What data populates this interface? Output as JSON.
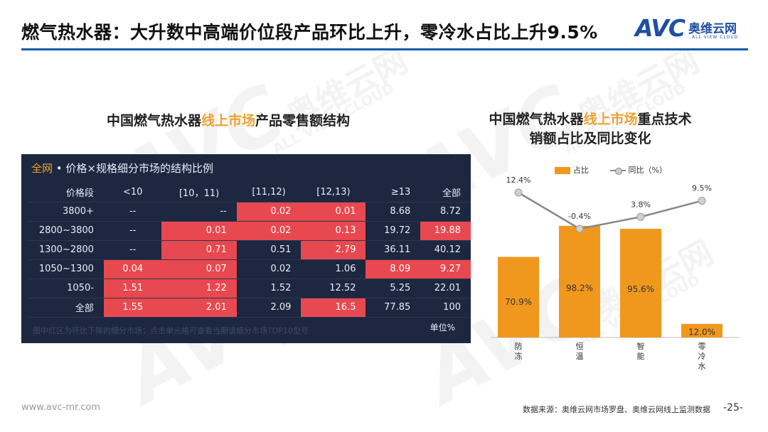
{
  "header": {
    "title": "燃气热水器：大升数中高端价位段产品环比上升，零冷水占比上升9.5%",
    "logo_text": "AVC",
    "logo_cn": "奥维云网",
    "logo_en": "ALL VIEW CLOUD",
    "accent_color": "#1a5aa8"
  },
  "watermark": {
    "mark": "AVC",
    "cn": "奥维云网",
    "en": "ALL VIEW CLOUD"
  },
  "left": {
    "subtitle_pre": "中国燃气热水器",
    "subtitle_hl": "线上市场",
    "subtitle_post": "产品零售额结构",
    "panel_scope": "全网",
    "panel_title": " • 价格×规格细分市场的结构比例",
    "note": "图中红区为环比下降的细分市场；点击单元格可查看当期该细分市场TOP10型号",
    "unit": "单位%",
    "columns": [
      "价格段",
      "<10",
      "[10，11)",
      "[11,12)",
      "[12,13)",
      "≥13",
      "全部"
    ],
    "rows": [
      {
        "cells": [
          "3800+",
          "--",
          "--",
          "0.02",
          "0.01",
          "8.68",
          "8.72"
        ],
        "red": [
          false,
          false,
          false,
          true,
          true,
          false,
          false
        ]
      },
      {
        "cells": [
          "2800~3800",
          "--",
          "0.01",
          "0.02",
          "0.13",
          "19.72",
          "19.88"
        ],
        "red": [
          false,
          false,
          true,
          true,
          true,
          false,
          true
        ]
      },
      {
        "cells": [
          "1300~2800",
          "--",
          "0.71",
          "0.51",
          "2.79",
          "36.11",
          "40.12"
        ],
        "red": [
          false,
          false,
          true,
          false,
          true,
          false,
          false
        ]
      },
      {
        "cells": [
          "1050~1300",
          "0.04",
          "0.07",
          "0.02",
          "1.06",
          "8.09",
          "9.27"
        ],
        "red": [
          false,
          true,
          true,
          false,
          false,
          true,
          true
        ]
      },
      {
        "cells": [
          "1050-",
          "1.51",
          "1.22",
          "1.52",
          "12.52",
          "5.25",
          "22.01"
        ],
        "red": [
          false,
          true,
          true,
          false,
          false,
          false,
          false
        ]
      },
      {
        "cells": [
          "全部",
          "1.55",
          "2.01",
          "2.09",
          "16.5",
          "77.85",
          "100"
        ],
        "red": [
          false,
          true,
          true,
          false,
          true,
          false,
          false
        ]
      }
    ],
    "highlight_color": "#e8484f",
    "panel_color": "#1d2740"
  },
  "right": {
    "subtitle_l1_pre": "中国燃气热水器",
    "subtitle_l1_hl": "线上市场",
    "subtitle_l1_post": "重点技术",
    "subtitle_l2": "销额占比及同比变化",
    "legend_bar": "占比",
    "legend_line": "同比（%）"
  },
  "chart_data": {
    "type": "bar",
    "categories": [
      "防冻",
      "恒温",
      "智能",
      "零冷水"
    ],
    "series": [
      {
        "name": "占比",
        "type": "bar",
        "values": [
          70.9,
          98.2,
          95.6,
          12.0
        ],
        "labels": [
          "70.9%",
          "98.2%",
          "95.6%",
          "12.0%"
        ],
        "color": "#f0981e"
      },
      {
        "name": "同比（%）",
        "type": "line",
        "values": [
          12.4,
          -0.4,
          3.8,
          9.5
        ],
        "labels": [
          "12.4%",
          "-0.4%",
          "3.8%",
          "9.5%"
        ],
        "color": "#888888"
      }
    ],
    "ylim_bar": [
      0,
      100
    ],
    "grid": false,
    "legend": "top"
  },
  "footer": {
    "site": "www.avc-mr.com",
    "source": "数据来源：奥维云网市场罗盘、奥维云网线上监测数据",
    "page": "-25-"
  }
}
